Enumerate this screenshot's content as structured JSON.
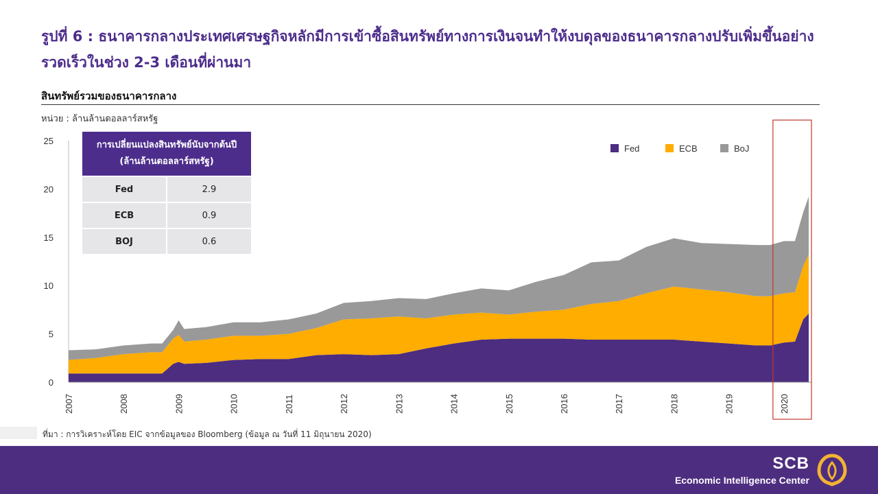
{
  "page": {
    "title": "รูปที่ 6 : ธนาคารกลางประเทศเศรษฐกิจหลักมีการเข้าซื้อสินทรัพย์ทางการเงินจนทำให้งบดุลของธนาคารกลางปรับเพิ่มขึ้นอย่างรวดเร็วในช่วง 2-3 เดือนที่ผ่านมา",
    "subtitle": "สินทรัพย์รวมของธนาคารกลาง",
    "unit": "หน่วย : ล้านล้านดอลลาร์สหรัฐ",
    "source": "ที่มา : การวิเคราะห์โดย EIC จากข้อมูลของ Bloomberg (ข้อมูล ณ วันที่ 11 มิถุนายน 2020)"
  },
  "summary_table": {
    "header": "การเปลี่ยนแปลงสินทรัพย์นับจากต้นปี (ล้านล้านดอลลาร์สหรัฐ)",
    "rows": [
      {
        "name": "Fed",
        "value": "2.9"
      },
      {
        "name": "ECB",
        "value": "0.9"
      },
      {
        "name": "BOJ",
        "value": "0.6"
      }
    ]
  },
  "footer": {
    "brand": "SCB",
    "tagline": "Economic Intelligence Center"
  },
  "chart_data": {
    "type": "area",
    "stacked": true,
    "ylim": [
      0,
      25
    ],
    "yticks": [
      0,
      5,
      10,
      15,
      20,
      25
    ],
    "xlim": [
      2007.0,
      2020.5
    ],
    "xticks": [
      "2007",
      "2008",
      "2009",
      "2010",
      "2011",
      "2012",
      "2013",
      "2014",
      "2015",
      "2016",
      "2017",
      "2018",
      "2019",
      "2020"
    ],
    "legend_position": "top-right",
    "highlight_range": [
      2019.8,
      2020.5
    ],
    "x": [
      2007.0,
      2007.5,
      2008.0,
      2008.5,
      2008.7,
      2008.9,
      2009.0,
      2009.1,
      2009.5,
      2010.0,
      2010.5,
      2011.0,
      2011.5,
      2012.0,
      2012.5,
      2013.0,
      2013.5,
      2014.0,
      2014.5,
      2015.0,
      2015.5,
      2016.0,
      2016.5,
      2017.0,
      2017.5,
      2018.0,
      2018.5,
      2019.0,
      2019.5,
      2019.75,
      2020.0,
      2020.2,
      2020.35,
      2020.45
    ],
    "series": [
      {
        "name": "Fed",
        "color": "#4d2d80",
        "values": [
          0.9,
          0.9,
          0.9,
          0.9,
          0.9,
          1.9,
          2.1,
          1.9,
          2.0,
          2.3,
          2.4,
          2.4,
          2.8,
          2.9,
          2.8,
          2.9,
          3.5,
          4.0,
          4.4,
          4.5,
          4.5,
          4.5,
          4.4,
          4.4,
          4.4,
          4.4,
          4.2,
          4.0,
          3.8,
          3.8,
          4.1,
          4.2,
          6.5,
          7.1
        ]
      },
      {
        "name": "ECB",
        "color": "#ffad00",
        "values": [
          1.4,
          1.6,
          2.0,
          2.2,
          2.2,
          2.6,
          2.8,
          2.3,
          2.4,
          2.5,
          2.4,
          2.6,
          2.8,
          3.6,
          3.8,
          3.9,
          3.1,
          3.0,
          2.8,
          2.5,
          2.8,
          3.0,
          3.7,
          4.0,
          4.8,
          5.5,
          5.4,
          5.3,
          5.1,
          5.1,
          5.1,
          5.1,
          5.5,
          6.1
        ]
      },
      {
        "name": "BoJ",
        "color": "#999999",
        "values": [
          1.0,
          0.9,
          0.9,
          0.9,
          0.9,
          0.9,
          1.5,
          1.3,
          1.3,
          1.4,
          1.4,
          1.5,
          1.5,
          1.7,
          1.8,
          1.9,
          2.0,
          2.2,
          2.5,
          2.5,
          3.1,
          3.6,
          4.3,
          4.2,
          4.8,
          5.0,
          4.8,
          5.0,
          5.3,
          5.3,
          5.4,
          5.3,
          5.6,
          6.0
        ]
      }
    ]
  }
}
